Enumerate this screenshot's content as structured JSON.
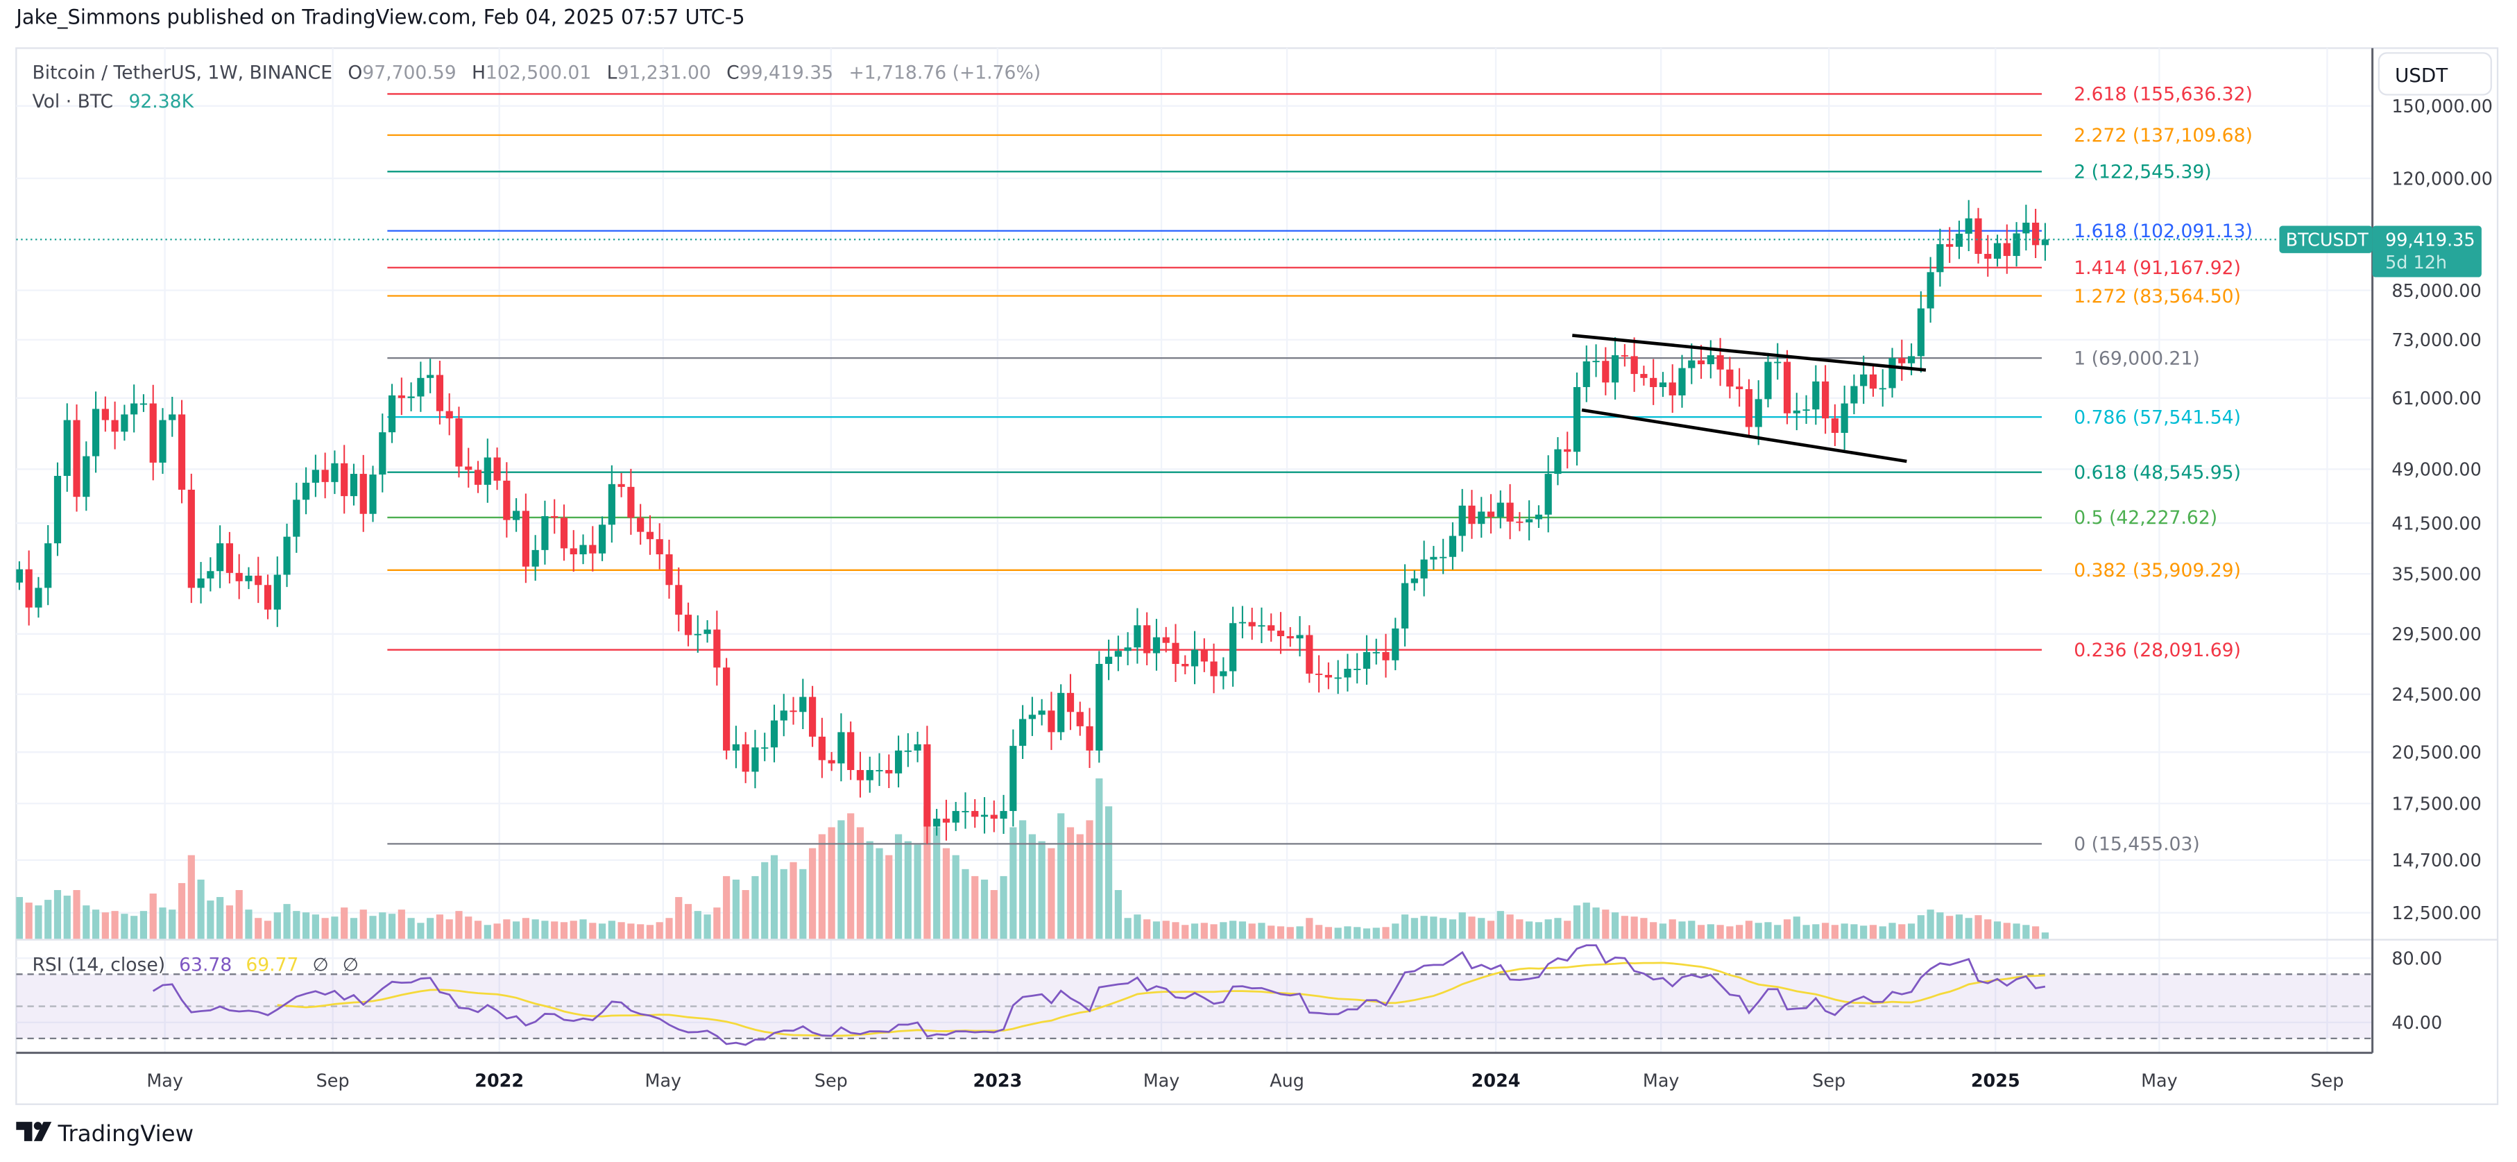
{
  "header": {
    "publisher_line": "Jake_Simmons published on TradingView.com, Feb 04, 2025 07:57 UTC-5"
  },
  "legend": {
    "symbol": "Bitcoin / TetherUS, 1W, BINANCE",
    "o_label": "O",
    "o": "97,700.59",
    "h_label": "H",
    "h": "102,500.01",
    "l_label": "L",
    "l": "91,231.00",
    "c_label": "C",
    "c": "99,419.35",
    "change": "+1,718.76 (+1.76%)",
    "vol_label": "Vol · BTC",
    "vol": "92.38K"
  },
  "price_axis": {
    "currency_button": "USDT",
    "ticks": [
      {
        "value": 150000,
        "label": "150,000.00"
      },
      {
        "value": 120000,
        "label": "120,000.00"
      },
      {
        "value": 85000,
        "label": "85,000.00"
      },
      {
        "value": 73000,
        "label": "73,000.00"
      },
      {
        "value": 61000,
        "label": "61,000.00"
      },
      {
        "value": 49000,
        "label": "49,000.00"
      },
      {
        "value": 41500,
        "label": "41,500.00"
      },
      {
        "value": 35500,
        "label": "35,500.00"
      },
      {
        "value": 29500,
        "label": "29,500.00"
      },
      {
        "value": 24500,
        "label": "24,500.00"
      },
      {
        "value": 20500,
        "label": "20,500.00"
      },
      {
        "value": 17500,
        "label": "17,500.00"
      },
      {
        "value": 14700,
        "label": "14,700.00"
      },
      {
        "value": 12500,
        "label": "12,500.00"
      }
    ],
    "scale": "log"
  },
  "last_price": {
    "symbol_tag": "BTCUSDT",
    "price": "99,419.35",
    "value": 99419.35,
    "countdown": "5d 12h"
  },
  "rsi": {
    "label": "RSI (14, close)",
    "value": "63.78",
    "ma_value": "69.77",
    "na1": "∅",
    "na2": "∅",
    "period": 14,
    "ma_period": 14,
    "axis_ticks": [
      {
        "value": 80,
        "label": "80.00"
      },
      {
        "value": 40,
        "label": "40.00"
      }
    ],
    "upper_band": 70,
    "middle_band": 50,
    "lower_band": 30
  },
  "time_axis": {
    "ticks": [
      {
        "label": "May",
        "date": "2021-05-01",
        "bold": false
      },
      {
        "label": "Sep",
        "date": "2021-09-01",
        "bold": false
      },
      {
        "label": "2022",
        "date": "2022-01-01",
        "bold": true
      },
      {
        "label": "May",
        "date": "2022-05-01",
        "bold": false
      },
      {
        "label": "Sep",
        "date": "2022-09-01",
        "bold": false
      },
      {
        "label": "2023",
        "date": "2023-01-01",
        "bold": true
      },
      {
        "label": "May",
        "date": "2023-05-01",
        "bold": false
      },
      {
        "label": "Aug",
        "date": "2023-08-01",
        "bold": false
      },
      {
        "label": "2024",
        "date": "2024-01-01",
        "bold": true
      },
      {
        "label": "May",
        "date": "2024-05-01",
        "bold": false
      },
      {
        "label": "Sep",
        "date": "2024-09-01",
        "bold": false
      },
      {
        "label": "2025",
        "date": "2025-01-01",
        "bold": true
      },
      {
        "label": "May",
        "date": "2025-05-01",
        "bold": false
      },
      {
        "label": "Sep",
        "date": "2025-09-01",
        "bold": false
      }
    ]
  },
  "fibonacci": {
    "anchor_date": "2021-10-11",
    "levels": [
      {
        "label": "2.618 (155,636.32)",
        "price": 155636.32,
        "color": "#f23645"
      },
      {
        "label": "2.272 (137,109.68)",
        "price": 137109.68,
        "color": "#ff9800"
      },
      {
        "label": "2 (122,545.39)",
        "price": 122545.39,
        "color": "#089981"
      },
      {
        "label": "1.618 (102,091.13)",
        "price": 102091.13,
        "color": "#2962ff"
      },
      {
        "label": "1.414 (91,167.92)",
        "price": 91167.92,
        "color": "#f23645"
      },
      {
        "label": "1.272 (83,564.50)",
        "price": 83564.5,
        "color": "#ff9800"
      },
      {
        "label": "1 (69,000.21)",
        "price": 69000.21,
        "color": "#787b86"
      },
      {
        "label": "0.786 (57,541.54)",
        "price": 57541.54,
        "color": "#00bcd4"
      },
      {
        "label": "0.618 (48,545.95)",
        "price": 48545.95,
        "color": "#089981"
      },
      {
        "label": "0.5 (42,227.62)",
        "price": 42227.62,
        "color": "#4caf50"
      },
      {
        "label": "0.382 (35,909.29)",
        "price": 35909.29,
        "color": "#ff9800"
      },
      {
        "label": "0.236 (28,091.69)",
        "price": 28091.69,
        "color": "#f23645"
      },
      {
        "label": "0 (15,455.03)",
        "price": 15455.03,
        "color": "#787b86"
      }
    ]
  },
  "trendlines": [
    {
      "from": {
        "date": "2024-02-26",
        "price": 74000
      },
      "to": {
        "date": "2024-11-11",
        "price": 66500
      },
      "color": "#000000"
    },
    {
      "from": {
        "date": "2024-03-04",
        "price": 58800
      },
      "to": {
        "date": "2024-10-28",
        "price": 50200
      },
      "color": "#000000"
    }
  ],
  "footer": {
    "logo_text": "TradingView"
  },
  "colors": {
    "up": "#089981",
    "down": "#f23645",
    "vol_up": "#92d2cc",
    "vol_down": "#f7a9a7",
    "rsi": "#7e57c2",
    "rsi_ma": "#f5d93a",
    "last_price": "#26a69a"
  },
  "chart_data": {
    "type": "candlestick",
    "interval": "1W",
    "first_week": "2021-01-11",
    "y_scale": "log",
    "ylim": [
      11500,
      165000
    ],
    "close": [
      36000,
      32000,
      34000,
      39000,
      48000,
      57000,
      45000,
      51000,
      59000,
      57000,
      55000,
      58000,
      60000,
      60000,
      50000,
      57000,
      58000,
      46000,
      34000,
      35000,
      35800,
      39000,
      35600,
      34700,
      35300,
      34300,
      31800,
      35400,
      39800,
      44600,
      47000,
      48900,
      47100,
      49900,
      45100,
      48300,
      42700,
      48200,
      54900,
      61500,
      61000,
      61300,
      64900,
      65500,
      58600,
      57300,
      49400,
      48900,
      46700,
      50800,
      47300,
      41900,
      43100,
      36300,
      38200,
      42400,
      42200,
      38400,
      37700,
      38800,
      37800,
      41300,
      46800,
      46400,
      42200,
      40400,
      39500,
      37700,
      34300,
      31300,
      29400,
      29500,
      29900,
      26600,
      20600,
      21000,
      19300,
      20800,
      20800,
      22600,
      23300,
      23200,
      24300,
      21500,
      20000,
      19800,
      21800,
      19400,
      18800,
      19400,
      19400,
      19200,
      20600,
      20600,
      21000,
      16300,
      16700,
      16500,
      17100,
      17100,
      16800,
      16900,
      16700,
      17100,
      20900,
      22700,
      23000,
      23300,
      21800,
      24600,
      23200,
      22200,
      20600,
      26900,
      27500,
      28000,
      28300,
      30300,
      27800,
      29200,
      28700,
      26900,
      26700,
      28100,
      27100,
      25900,
      26300,
      30500,
      30600,
      30200,
      30300,
      29800,
      29300,
      29100,
      29400,
      26100,
      26000,
      25800,
      25800,
      26500,
      26500,
      27900,
      27900,
      27200,
      30000,
      34500,
      35000,
      37100,
      37400,
      37400,
      39900,
      43800,
      41400,
      43000,
      42300,
      44200,
      41700,
      41600,
      42000,
      42600,
      48300,
      52100,
      51700,
      63100,
      68300,
      68400,
      64000,
      69600,
      69400,
      65700,
      64900,
      63100,
      64000,
      61500,
      66900,
      68500,
      67700,
      69600,
      66600,
      63200,
      62700,
      55800,
      60800,
      68200,
      68200,
      58200,
      58700,
      58900,
      64200,
      57300,
      54800,
      60000,
      63300,
      65600,
      62800,
      62900,
      69000,
      67900,
      69400,
      80400,
      89900,
      98000,
      97200,
      101200,
      106100,
      95100,
      93700,
      98300,
      94500,
      101300,
      104700,
      97700.59,
      99419.35
    ],
    "volume_k": [
      600,
      520,
      480,
      560,
      700,
      620,
      700,
      480,
      420,
      380,
      400,
      360,
      330,
      400,
      650,
      450,
      420,
      800,
      1200,
      850,
      550,
      600,
      480,
      700,
      420,
      300,
      260,
      380,
      500,
      400,
      380,
      350,
      300,
      320,
      450,
      300,
      420,
      330,
      380,
      360,
      420,
      300,
      230,
      300,
      350,
      280,
      400,
      320,
      260,
      200,
      220,
      280,
      250,
      300,
      280,
      260,
      250,
      240,
      260,
      280,
      230,
      220,
      260,
      240,
      220,
      210,
      200,
      240,
      300,
      600,
      500,
      400,
      350,
      450,
      900,
      850,
      700,
      900,
      1100,
      1200,
      1000,
      1100,
      1000,
      1300,
      1500,
      1600,
      1700,
      1800,
      1600,
      1400,
      1300,
      1200,
      1500,
      1400,
      1350,
      1900,
      1600,
      1300,
      1200,
      1000,
      900,
      850,
      700,
      900,
      1600,
      1700,
      1500,
      1400,
      1300,
      1800,
      1600,
      1500,
      1700,
      2300,
      1900,
      700,
      300,
      350,
      280,
      250,
      260,
      240,
      200,
      220,
      230,
      210,
      240,
      260,
      250,
      220,
      230,
      190,
      180,
      170,
      180,
      300,
      200,
      170,
      160,
      180,
      170,
      150,
      160,
      170,
      220,
      350,
      300,
      330,
      320,
      300,
      280,
      380,
      320,
      300,
      260,
      400,
      350,
      280,
      250,
      240,
      280,
      300,
      260,
      480,
      520,
      450,
      420,
      380,
      330,
      320,
      300,
      240,
      220,
      280,
      250,
      260,
      200,
      210,
      200,
      180,
      200,
      260,
      230,
      240,
      200,
      280,
      320,
      200,
      210,
      230,
      200,
      220,
      210,
      190,
      200,
      180,
      230,
      210,
      220,
      340,
      420,
      380,
      330,
      350,
      300,
      340,
      280,
      250,
      230,
      220,
      200,
      180,
      92.38
    ]
  }
}
